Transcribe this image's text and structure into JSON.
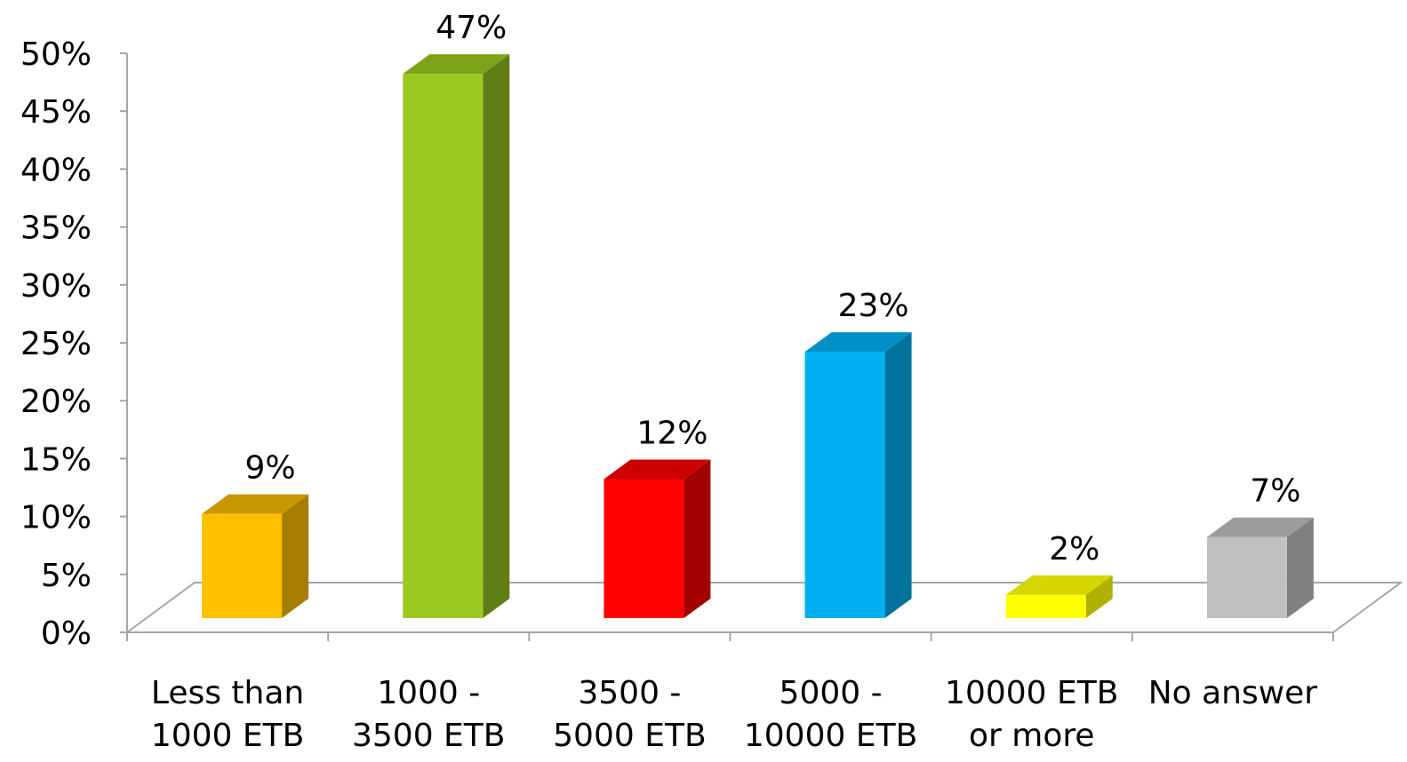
{
  "chart_data": {
    "type": "bar",
    "style": "3d-column",
    "categories": [
      [
        "Less than",
        "1000 ETB"
      ],
      [
        "1000 -",
        "3500 ETB"
      ],
      [
        "3500 -",
        "5000 ETB"
      ],
      [
        "5000 -",
        "10000 ETB"
      ],
      [
        "10000 ETB",
        "or more"
      ],
      [
        "No answer"
      ]
    ],
    "values": [
      9,
      47,
      12,
      23,
      2,
      7
    ],
    "data_labels": [
      "9%",
      "47%",
      "12%",
      "23%",
      "2%",
      "7%"
    ],
    "colors": [
      {
        "front": "#FFC000",
        "top": "#C99700",
        "side": "#A67D00"
      },
      {
        "front": "#9BC922",
        "top": "#7EA31B",
        "side": "#617E15"
      },
      {
        "front": "#FF0000",
        "top": "#CC0000",
        "side": "#A30000"
      },
      {
        "front": "#00B0F0",
        "top": "#0090C5",
        "side": "#00729B"
      },
      {
        "front": "#FFFF00",
        "top": "#D6D600",
        "side": "#B0B000"
      },
      {
        "front": "#C0C0C0",
        "top": "#9C9C9C",
        "side": "#808080"
      }
    ],
    "y_ticks": [
      "0%",
      "5%",
      "10%",
      "15%",
      "20%",
      "25%",
      "30%",
      "35%",
      "40%",
      "45%",
      "50%"
    ],
    "ylim": [
      0,
      50
    ],
    "grid": false,
    "legend": "none",
    "title": "",
    "xlabel": "",
    "ylabel": ""
  }
}
